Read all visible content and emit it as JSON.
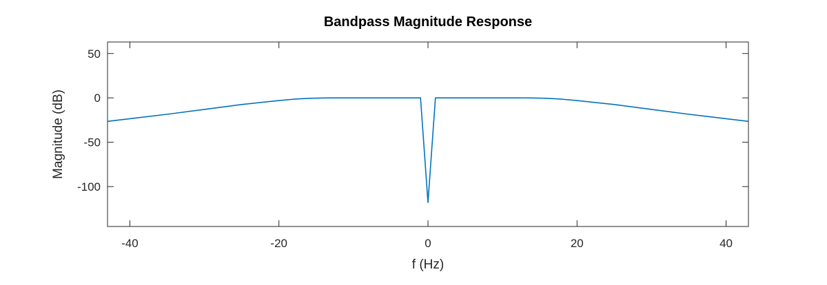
{
  "chart_data": {
    "type": "line",
    "title": "Bandpass Magnitude Response",
    "xlabel": "f (Hz)",
    "ylabel": "Magnitude (dB)",
    "xlim": [
      -43,
      43
    ],
    "ylim": [
      -145,
      63
    ],
    "xticks": [
      -40,
      -20,
      0,
      20,
      40
    ],
    "yticks": [
      50,
      0,
      -50,
      -100
    ],
    "xtick_labels": [
      "-40",
      "-20",
      "0",
      "20",
      "40"
    ],
    "ytick_labels": [
      "50",
      "0",
      "-50",
      "-100"
    ],
    "grid": false,
    "series": [
      {
        "color": "#0072BD",
        "x": [
          -43,
          -40,
          -35,
          -30,
          -25,
          -20,
          -18,
          -16,
          -14,
          -12,
          -10,
          -5,
          -1,
          0,
          1,
          5,
          10,
          12,
          14,
          16,
          18,
          20,
          25,
          30,
          35,
          40,
          43
        ],
        "y": [
          -26.5,
          -23.5,
          -18.5,
          -13.0,
          -7.5,
          -3.0,
          -1.5,
          -0.5,
          -0.1,
          0,
          0,
          0,
          0,
          -118,
          0,
          0,
          0,
          0,
          -0.1,
          -0.5,
          -1.5,
          -3.0,
          -7.5,
          -13.0,
          -18.5,
          -23.5,
          -26.5
        ]
      }
    ]
  }
}
